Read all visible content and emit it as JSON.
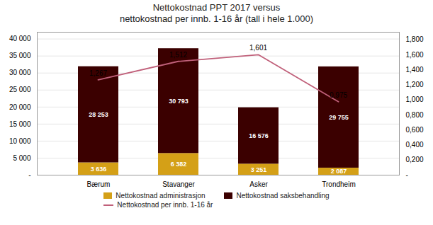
{
  "chart_data": {
    "type": "bar",
    "title": "Nettokostnad PPT 2017 versus",
    "subtitle": "nettokostnad per innb. 1-16 år (tall i hele 1.000)",
    "categories": [
      "Bærum",
      "Stavanger",
      "Asker",
      "Trondheim"
    ],
    "stacked": true,
    "data_labels": true,
    "grid": true,
    "legend": "bottom",
    "series": [
      {
        "name": "Nettokostnad administrasjon",
        "color": "#D4A017",
        "values": [
          3636,
          6382,
          3251,
          2087
        ],
        "value_labels": [
          "3 636",
          "6 382",
          "3 251",
          "2 087"
        ]
      },
      {
        "name": "Nettokostnad saksbehandling",
        "color": "#3B0000",
        "values": [
          28253,
          30793,
          16576,
          29755
        ],
        "value_labels": [
          "28 253",
          "30 793",
          "16 576",
          "29 755"
        ]
      },
      {
        "name": "Nettokostnad per innb. 1-16 år",
        "type": "line",
        "axis": "y2",
        "color": "#C0607A",
        "values": [
          1.267,
          1.512,
          1.601,
          0.975
        ],
        "value_labels": [
          "1,267",
          "1,512",
          "1,601",
          "0,975"
        ]
      }
    ],
    "ylim": [
      0,
      42000
    ],
    "yticks": [
      {
        "value": 0,
        "label": "-"
      },
      {
        "value": 5000,
        "label": "5 000"
      },
      {
        "value": 10000,
        "label": "10 000"
      },
      {
        "value": 15000,
        "label": "15 000"
      },
      {
        "value": 20000,
        "label": "20 000"
      },
      {
        "value": 25000,
        "label": "25 000"
      },
      {
        "value": 30000,
        "label": "30 000"
      },
      {
        "value": 35000,
        "label": "35 000"
      },
      {
        "value": 40000,
        "label": "40 000"
      }
    ],
    "y2lim": [
      0,
      1.9
    ],
    "y2ticks": [
      {
        "value": 0.0,
        "label": "-"
      },
      {
        "value": 0.2,
        "label": "0,200"
      },
      {
        "value": 0.4,
        "label": "0,400"
      },
      {
        "value": 0.6,
        "label": "0,600"
      },
      {
        "value": 0.8,
        "label": "0,800"
      },
      {
        "value": 1.0,
        "label": "1,000"
      },
      {
        "value": 1.2,
        "label": "1,200"
      },
      {
        "value": 1.4,
        "label": "1,400"
      },
      {
        "value": 1.6,
        "label": "1,600"
      },
      {
        "value": 1.8,
        "label": "1,800"
      }
    ]
  }
}
